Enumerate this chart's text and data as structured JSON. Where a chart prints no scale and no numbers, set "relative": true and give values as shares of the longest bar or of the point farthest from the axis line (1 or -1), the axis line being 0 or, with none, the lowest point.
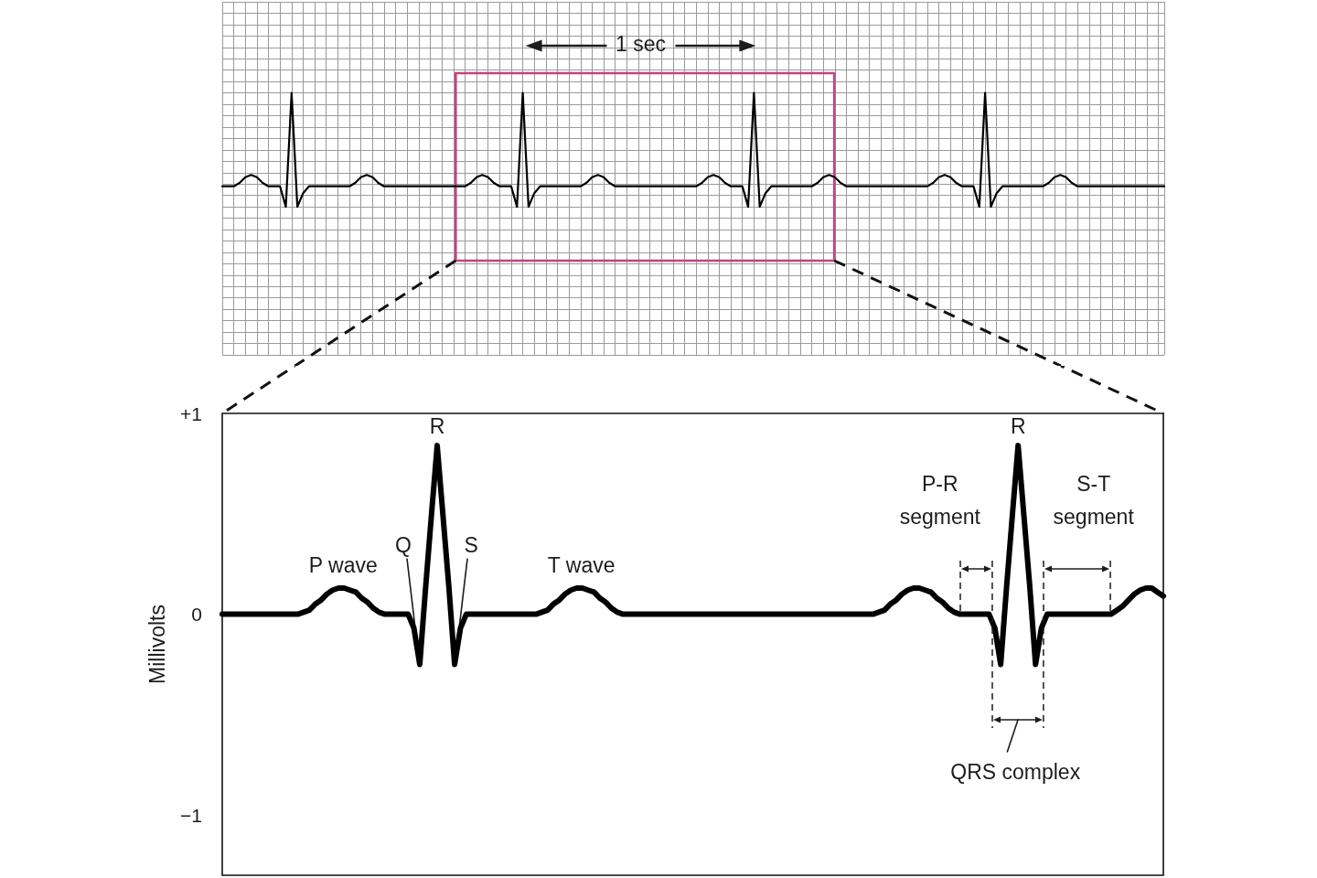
{
  "chart_data": [
    {
      "type": "line",
      "relative": true,
      "categories": [
        null,
        null,
        null,
        null,
        null,
        null,
        null,
        null,
        null,
        null,
        null,
        null,
        null,
        null,
        null,
        null,
        null,
        null,
        null,
        null,
        null,
        null,
        null,
        null,
        null,
        null,
        null,
        null,
        null,
        null,
        null,
        null,
        null,
        null,
        null,
        null,
        null,
        null,
        null,
        null,
        null,
        null,
        null,
        null,
        null,
        null,
        null,
        null,
        null,
        null,
        null,
        null,
        null,
        null,
        null,
        null,
        null,
        null,
        null,
        null,
        null,
        null,
        null,
        null,
        null,
        null,
        null,
        null,
        null,
        null,
        null,
        null,
        null,
        null,
        null,
        null,
        null,
        null,
        null,
        null,
        null,
        null,
        null,
        null,
        null,
        null,
        null,
        null,
        null,
        null,
        null,
        null,
        null,
        null,
        null,
        null,
        null,
        null,
        null,
        null,
        null,
        null,
        null,
        null,
        null,
        null,
        null,
        null,
        null,
        null,
        null,
        null,
        null,
        null,
        null,
        null,
        null,
        null,
        null,
        null,
        null,
        null,
        null,
        null,
        null,
        null,
        null,
        null,
        null,
        null,
        null,
        null,
        null,
        null,
        null,
        null,
        null,
        null,
        null,
        null,
        null,
        null,
        null,
        null,
        null,
        null,
        null,
        null,
        null,
        null,
        null,
        null,
        null,
        null,
        null,
        null,
        null,
        null,
        null,
        null,
        null,
        null,
        null,
        null
      ],
      "values": [
        0.18,
        0.18,
        0.18,
        0.21,
        0.26,
        0.28,
        0.26,
        0.21,
        0.18,
        0.18,
        0.18,
        0,
        1,
        0,
        0.12,
        0.18,
        0.18,
        0.18,
        0.18,
        0.18,
        0.18,
        0.18,
        0.18,
        0.21,
        0.26,
        0.28,
        0.26,
        0.21,
        0.18,
        0.18,
        0.18,
        0.18,
        0.18,
        0.18,
        0.18,
        0.18,
        0.18,
        0.18,
        0.18,
        0.18,
        0.18,
        0.18,
        0.18,
        0.21,
        0.26,
        0.28,
        0.26,
        0.21,
        0.18,
        0.18,
        0.18,
        0,
        1,
        0,
        0.12,
        0.18,
        0.18,
        0.18,
        0.18,
        0.18,
        0.18,
        0.18,
        0.18,
        0.21,
        0.26,
        0.28,
        0.26,
        0.21,
        0.18,
        0.18,
        0.18,
        0.18,
        0.18,
        0.18,
        0.18,
        0.18,
        0.18,
        0.18,
        0.18,
        0.18,
        0.18,
        0.18,
        0.18,
        0.21,
        0.26,
        0.28,
        0.26,
        0.21,
        0.18,
        0.18,
        0.18,
        0,
        1,
        0,
        0.12,
        0.18,
        0.18,
        0.18,
        0.18,
        0.18,
        0.18,
        0.18,
        0.18,
        0.21,
        0.26,
        0.28,
        0.26,
        0.21,
        0.18,
        0.18,
        0.18,
        0.18,
        0.18,
        0.18,
        0.18,
        0.18,
        0.18,
        0.18,
        0.18,
        0.18,
        0.18,
        0.18,
        0.18,
        0.21,
        0.26,
        0.28,
        0.26,
        0.21,
        0.18,
        0.18,
        0.18,
        0,
        1,
        0,
        0.12,
        0.18,
        0.18,
        0.18,
        0.18,
        0.18,
        0.18,
        0.18,
        0.18,
        0.21,
        0.26,
        0.28,
        0.26,
        0.21,
        0.18,
        0.18,
        0.18,
        0.18,
        0.18,
        0.18,
        0.18,
        0.18,
        0.18,
        0.18,
        0.18,
        0.18,
        0.18,
        0.18,
        0.18,
        0.18
      ],
      "color": "#000000",
      "grid": true,
      "tick_labels": false,
      "annotations": [
        "1 sec"
      ]
    },
    {
      "type": "line",
      "categories": [
        null,
        null,
        null,
        null,
        null,
        null,
        null,
        null,
        null,
        null,
        null,
        null,
        null,
        null,
        null,
        null,
        null,
        null,
        null,
        null,
        null,
        null,
        null,
        null,
        null,
        null,
        null,
        null,
        null,
        null,
        null,
        null,
        null,
        null,
        null,
        null,
        null,
        null,
        null,
        null,
        null,
        null,
        null,
        null,
        null,
        null,
        null,
        null,
        null,
        null,
        null,
        null,
        null,
        null,
        null,
        null,
        null,
        null,
        null,
        null,
        null,
        null,
        null,
        null,
        null,
        null,
        null,
        null,
        null,
        null,
        null,
        null,
        null,
        null,
        null,
        null,
        null,
        null,
        null,
        null,
        null,
        null,
        null,
        null,
        null,
        null,
        null,
        null,
        null,
        null,
        null,
        null,
        null,
        null,
        null,
        null,
        null,
        null,
        null,
        null,
        null,
        null,
        null,
        null,
        null,
        null,
        null,
        null,
        null,
        null,
        null,
        null,
        null,
        null,
        null,
        null,
        null,
        null,
        null,
        null,
        null,
        null,
        null,
        null,
        null,
        null,
        null,
        null,
        null,
        null,
        null,
        null,
        null,
        null,
        null,
        null,
        null,
        null,
        null,
        null,
        null,
        null,
        null,
        null,
        null,
        null,
        null,
        null,
        null,
        null,
        null,
        null,
        null,
        null,
        null,
        null,
        null,
        null,
        null,
        null,
        null,
        null,
        null
      ],
      "values": [
        0,
        0,
        0,
        0,
        0,
        0,
        0,
        0,
        0,
        0,
        0,
        0,
        0,
        0,
        0.01,
        0.02,
        0.05,
        0.07,
        0.1,
        0.12,
        0.13,
        0.13,
        0.12,
        0.11,
        0.08,
        0.06,
        0.03,
        0.01,
        0,
        0,
        0,
        0,
        0,
        -0.07,
        -0.25,
        0.13,
        0.49,
        0.84,
        0.49,
        0.14,
        -0.25,
        -0.07,
        0,
        0,
        0,
        0,
        0,
        0,
        0,
        0,
        0,
        0,
        0,
        0,
        0,
        0.01,
        0.02,
        0.05,
        0.07,
        0.1,
        0.12,
        0.13,
        0.13,
        0.12,
        0.11,
        0.08,
        0.06,
        0.03,
        0.01,
        0,
        0,
        0,
        0,
        0,
        0,
        0,
        0,
        0,
        0,
        0,
        0,
        0,
        0,
        0,
        0,
        0,
        0,
        0,
        0,
        0,
        0,
        0,
        0,
        0,
        0,
        0,
        0,
        0,
        0,
        0,
        0,
        0,
        0,
        0,
        0,
        0,
        0,
        0,
        0,
        0,
        0,
        0,
        0,
        0.01,
        0.02,
        0.05,
        0.07,
        0.1,
        0.12,
        0.13,
        0.13,
        0.12,
        0.11,
        0.08,
        0.06,
        0.03,
        0.01,
        0,
        0,
        0,
        0,
        0,
        0,
        -0.07,
        -0.25,
        0.13,
        0.49,
        0.84,
        0.49,
        0.14,
        -0.25,
        -0.07,
        0,
        0,
        0,
        0,
        0,
        0,
        0,
        0,
        0,
        0,
        0,
        0,
        0.02,
        0.04,
        0.07,
        0.1,
        0.12,
        0.13,
        0.13,
        0.11,
        0.09
      ],
      "color": "#000000",
      "ylabel": "Millivolts",
      "ylim": [
        -1.3,
        1
      ],
      "yticks": [
        {
          "value": 1,
          "label": "+1"
        },
        0,
        {
          "value": -1,
          "label": "−1"
        }
      ],
      "tick_labels": "y",
      "annotations": [
        "R",
        "Q",
        "S",
        "P wave",
        "T wave",
        "P-R segment",
        "R",
        "S-T segment",
        "QRS complex"
      ]
    }
  ]
}
